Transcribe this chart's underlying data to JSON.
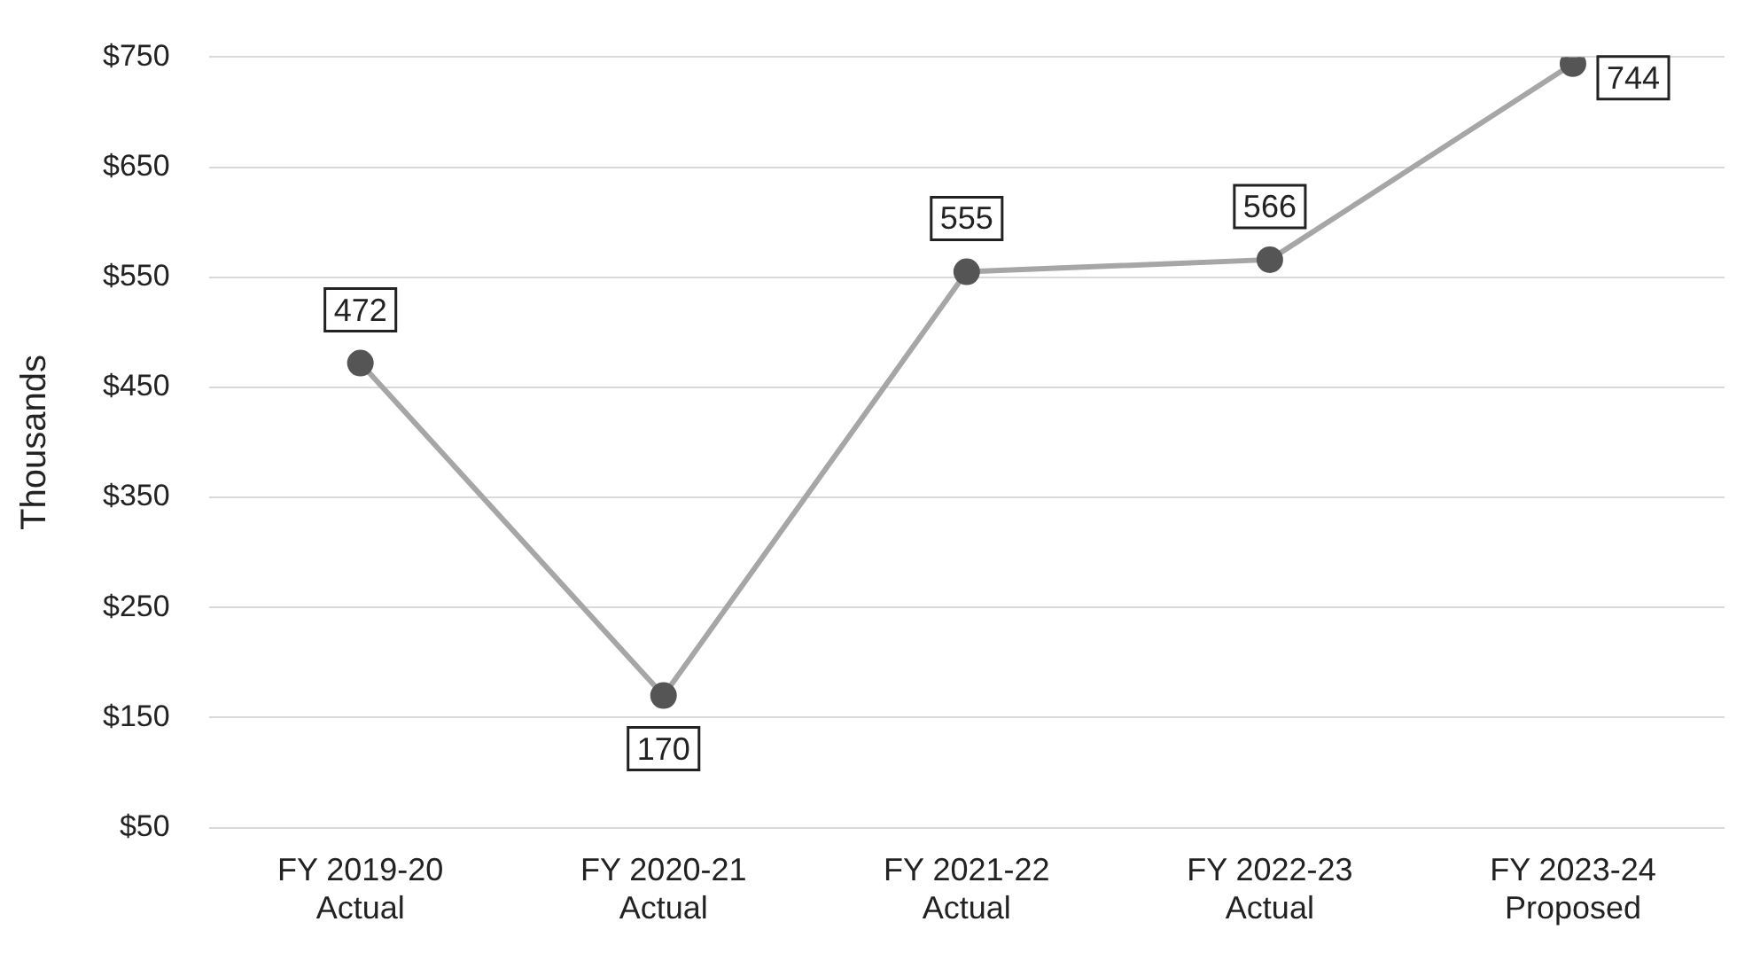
{
  "chart_data": {
    "type": "line",
    "ylabel": "Thousands",
    "categories": [
      "FY 2019-20\nActual",
      "FY 2020-21\nActual",
      "FY 2021-22\nActual",
      "FY 2022-23\nActual",
      "FY 2023-24\nProposed"
    ],
    "series": [
      {
        "color": "#a6a6a6",
        "values": [
          472,
          170,
          555,
          566,
          744
        ]
      }
    ],
    "ylim": [
      50,
      750
    ],
    "yticks": [
      {
        "value": 50,
        "label": "$50"
      },
      {
        "value": 150,
        "label": "$150"
      },
      {
        "value": 250,
        "label": "$250"
      },
      {
        "value": 350,
        "label": "$350"
      },
      {
        "value": 450,
        "label": "$450"
      },
      {
        "value": 550,
        "label": "$550"
      },
      {
        "value": 650,
        "label": "$650"
      },
      {
        "value": 750,
        "label": "$750"
      }
    ],
    "grid": "y",
    "legend": false,
    "marker": "circle",
    "data_labels": true
  }
}
